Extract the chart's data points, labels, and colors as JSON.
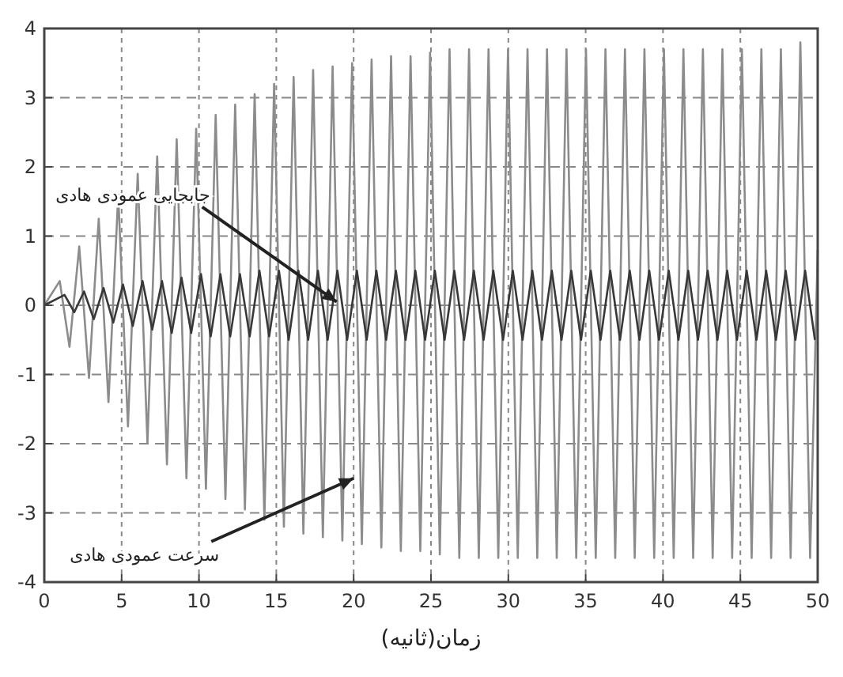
{
  "chart_data": {
    "type": "line",
    "xlabel": "زمان(ثانیه)",
    "xlim": [
      0,
      50
    ],
    "xticks": [
      0,
      5,
      10,
      15,
      20,
      25,
      30,
      35,
      40,
      45,
      50
    ],
    "ylim": [
      -4,
      4
    ],
    "yticks": [
      -4,
      -3,
      -2,
      -1,
      0,
      1,
      2,
      3,
      4
    ],
    "grid": true,
    "annotations": [
      {
        "text": "جابجایی عمودی هادی",
        "x": 18.9,
        "y": 0.05
      },
      {
        "text": "سرعت عمودی هادی",
        "x": 20,
        "y": -2.5
      }
    ],
    "series": [
      {
        "color": "#8c8c8c",
        "x": [
          0,
          1.0,
          1.63,
          2.26,
          2.89,
          3.52,
          4.15,
          4.78,
          5.41,
          6.04,
          6.67,
          7.3,
          7.93,
          8.56,
          9.19,
          9.82,
          10.45,
          11.08,
          11.71,
          12.34,
          12.97,
          13.6,
          14.23,
          14.86,
          15.49,
          16.12,
          16.75,
          17.38,
          18.01,
          18.64,
          19.27,
          19.9,
          20.53,
          21.16,
          21.79,
          22.42,
          23.05,
          23.68,
          24.31,
          24.94,
          25.57,
          26.2,
          26.83,
          27.46,
          28.09,
          28.72,
          29.35,
          29.98,
          30.61,
          31.24,
          31.87,
          32.5,
          33.13,
          33.76,
          34.39,
          35.02,
          35.65,
          36.28,
          36.91,
          37.54,
          38.17,
          38.8,
          39.43,
          40.06,
          40.69,
          41.32,
          41.95,
          42.58,
          43.21,
          43.84,
          44.47,
          45.1,
          45.73,
          46.36,
          46.99,
          47.62,
          48.25,
          48.88,
          49.51,
          50
        ],
        "values": [
          0,
          0.35,
          -0.6,
          0.85,
          -1.05,
          1.25,
          -1.4,
          1.6,
          -1.75,
          1.9,
          -2.0,
          2.15,
          -2.3,
          2.4,
          -2.5,
          2.55,
          -2.65,
          2.75,
          -2.8,
          2.9,
          -2.95,
          3.05,
          -3.1,
          3.2,
          -3.2,
          3.3,
          -3.3,
          3.4,
          -3.35,
          3.45,
          -3.4,
          3.5,
          -3.45,
          3.55,
          -3.5,
          3.6,
          -3.55,
          3.6,
          -3.55,
          3.65,
          -3.6,
          3.7,
          -3.65,
          3.7,
          -3.65,
          3.7,
          -3.65,
          3.7,
          -3.65,
          3.7,
          -3.65,
          3.7,
          -3.65,
          3.7,
          -3.65,
          3.7,
          -3.65,
          3.7,
          -3.65,
          3.7,
          -3.65,
          3.7,
          -3.65,
          3.7,
          -3.65,
          3.7,
          -3.65,
          3.7,
          -3.65,
          3.7,
          -3.65,
          3.7,
          -3.65,
          3.7,
          -3.65,
          3.7,
          -3.65,
          3.8,
          -3.65,
          0.8
        ]
      },
      {
        "color": "#383838",
        "x": [
          0,
          1.31,
          1.94,
          2.57,
          3.2,
          3.83,
          4.46,
          5.09,
          5.72,
          6.35,
          6.98,
          7.61,
          8.24,
          8.87,
          9.5,
          10.13,
          10.76,
          11.39,
          12.02,
          12.65,
          13.28,
          13.91,
          14.54,
          15.17,
          15.8,
          16.43,
          17.06,
          17.69,
          18.32,
          18.95,
          19.58,
          20.21,
          20.84,
          21.47,
          22.1,
          22.73,
          23.36,
          23.99,
          24.62,
          25.25,
          25.88,
          26.51,
          27.14,
          27.77,
          28.4,
          29.03,
          29.66,
          30.29,
          30.92,
          31.55,
          32.18,
          32.81,
          33.44,
          34.07,
          34.7,
          35.33,
          35.96,
          36.59,
          37.22,
          37.85,
          38.48,
          39.11,
          39.74,
          40.37,
          41.0,
          41.63,
          42.26,
          42.89,
          43.52,
          44.15,
          44.78,
          45.41,
          46.04,
          46.67,
          47.3,
          47.93,
          48.56,
          49.19,
          49.82
        ],
        "values": [
          0,
          0.15,
          -0.1,
          0.2,
          -0.2,
          0.25,
          -0.25,
          0.3,
          -0.3,
          0.35,
          -0.35,
          0.35,
          -0.4,
          0.4,
          -0.4,
          0.45,
          -0.45,
          0.45,
          -0.45,
          0.45,
          -0.45,
          0.5,
          -0.45,
          0.5,
          -0.5,
          0.5,
          -0.5,
          0.5,
          -0.5,
          0.5,
          -0.5,
          0.5,
          -0.5,
          0.5,
          -0.5,
          0.5,
          -0.5,
          0.5,
          -0.5,
          0.5,
          -0.5,
          0.5,
          -0.5,
          0.5,
          -0.5,
          0.5,
          -0.5,
          0.5,
          -0.5,
          0.5,
          -0.5,
          0.5,
          -0.5,
          0.5,
          -0.5,
          0.5,
          -0.5,
          0.5,
          -0.5,
          0.5,
          -0.5,
          0.5,
          -0.5,
          0.5,
          -0.5,
          0.5,
          -0.5,
          0.5,
          -0.5,
          0.5,
          -0.5,
          0.5,
          -0.5,
          0.5,
          -0.5,
          0.5,
          -0.5,
          0.5,
          -0.5
        ]
      }
    ]
  }
}
